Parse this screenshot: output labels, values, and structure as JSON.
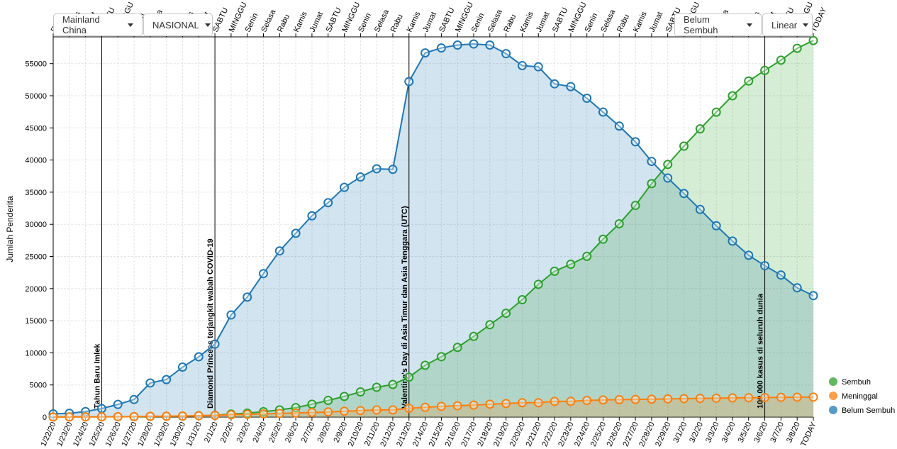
{
  "controls": {
    "region": "Mainland China",
    "scope": "NASIONAL",
    "metric": "Belum Sembuh",
    "scale": "Linear"
  },
  "colors": {
    "recovered": "#2ca02c",
    "deaths": "#ff7f0e",
    "active": "#1f77b4"
  },
  "chart_data": {
    "type": "area",
    "ylabel": "Jumlah Penderita",
    "ylim": [
      0,
      58500
    ],
    "yticks": [
      0,
      5000,
      10000,
      15000,
      20000,
      25000,
      30000,
      35000,
      40000,
      45000,
      50000,
      55000
    ],
    "x": [
      "1/22/20",
      "1/23/20",
      "1/24/20",
      "1/25/20",
      "1/26/20",
      "1/27/20",
      "1/28/20",
      "1/29/20",
      "1/30/20",
      "1/31/20",
      "2/1/20",
      "2/2/20",
      "2/3/20",
      "2/4/20",
      "2/5/20",
      "2/6/20",
      "2/7/20",
      "2/8/20",
      "2/9/20",
      "2/10/20",
      "2/11/20",
      "2/12/20",
      "2/13/20",
      "2/14/20",
      "2/15/20",
      "2/16/20",
      "2/17/20",
      "2/18/20",
      "2/19/20",
      "2/20/20",
      "2/21/20",
      "2/22/20",
      "2/23/20",
      "2/24/20",
      "2/25/20",
      "2/26/20",
      "2/27/20",
      "2/28/20",
      "2/29/20",
      "3/1/20",
      "3/2/20",
      "3/3/20",
      "3/4/20",
      "3/5/20",
      "3/6/20",
      "3/7/20",
      "3/8/20",
      "TODAY"
    ],
    "top_labels": [
      "Rabu",
      "Kamis",
      "Jumat",
      "SABTU",
      "MINGGU",
      "Senin",
      "Selasa",
      "Rabu",
      "Kamis",
      "Jumat",
      "SABTU",
      "MINGGU",
      "Senin",
      "Selasa",
      "Rabu",
      "Kamis",
      "Jumat",
      "SABTU",
      "MINGGU",
      "Senin",
      "Selasa",
      "Rabu",
      "Kamis",
      "Jumat",
      "SABTU",
      "MINGGU",
      "Senin",
      "Selasa",
      "Rabu",
      "Kamis",
      "Jumat",
      "SABTU",
      "MINGGU",
      "Senin",
      "Selasa",
      "Rabu",
      "Kamis",
      "Jumat",
      "SABTU",
      "MINGGU",
      "Senin",
      "Selasa",
      "Rabu",
      "Kamis",
      "Jumat",
      "SABTU",
      "MINGGU",
      "TODAY"
    ],
    "series": [
      {
        "name": "Sembuh",
        "key": "recovered",
        "values": [
          28,
          30,
          36,
          39,
          49,
          58,
          101,
          120,
          135,
          214,
          275,
          463,
          614,
          843,
          1115,
          1476,
          1998,
          2595,
          3218,
          3917,
          4635,
          5079,
          6213,
          8058,
          9395,
          10844,
          12552,
          14376,
          16155,
          18264,
          20659,
          22699,
          23782,
          25015,
          27676,
          30084,
          32930,
          36329,
          39320,
          42162,
          44854,
          47450,
          50001,
          52292,
          53944,
          55539,
          57388,
          58600
        ]
      },
      {
        "name": "Meninggal",
        "key": "deaths",
        "values": [
          17,
          18,
          26,
          42,
          56,
          82,
          131,
          133,
          171,
          213,
          259,
          361,
          425,
          490,
          562,
          632,
          717,
          803,
          904,
          1011,
          1112,
          1117,
          1369,
          1521,
          1663,
          1765,
          1863,
          2002,
          2114,
          2236,
          2236,
          2441,
          2443,
          2593,
          2663,
          2715,
          2744,
          2788,
          2835,
          2870,
          2912,
          2943,
          2981,
          3012,
          3042,
          3070,
          3097,
          3110
        ]
      },
      {
        "name": "Belum Sembuh",
        "key": "active",
        "values": [
          503,
          595,
          858,
          1325,
          1970,
          2737,
          5303,
          5836,
          7776,
          9382,
          11352,
          15892,
          18669,
          22330,
          25853,
          28602,
          31323,
          33361,
          35743,
          37357,
          38636,
          38550,
          52213,
          56665,
          57443,
          57890,
          58055,
          57891,
          56553,
          54694,
          54508,
          51856,
          51425,
          49616,
          47456,
          45283,
          42841,
          39782,
          37200,
          34791,
          32307,
          29777,
          27384,
          25180,
          23558,
          22100,
          20120,
          18900
        ]
      }
    ],
    "annotations": [
      {
        "at": "1/25/20",
        "text": "Tahun Baru Imlek"
      },
      {
        "at": "2/1/20",
        "text": "Diamond Princess terjangkit wabah COVID-19"
      },
      {
        "at": "2/13/20",
        "text": "Valentine's Day di Asia Timur dan Asia Tenggara (UTC)"
      },
      {
        "at": "3/6/20",
        "text": "100.000 kasus di seluruh dunia"
      }
    ],
    "legend": [
      "Sembuh",
      "Meninggal",
      "Belum Sembuh"
    ],
    "legend_position": "bottom-right",
    "grid": true
  }
}
